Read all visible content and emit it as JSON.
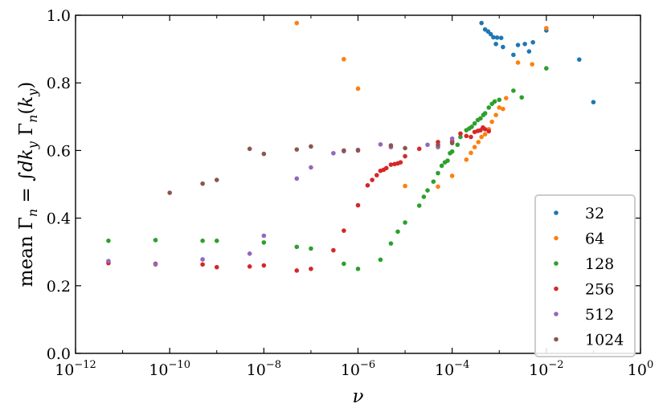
{
  "chart_data": {
    "type": "scatter",
    "title": "",
    "xlabel": "ν",
    "ylabel": "mean Γn = ∫dky Γn(ky)",
    "xscale": "log",
    "xlim": [
      1e-12,
      1
    ],
    "ylim": [
      0.0,
      1.0
    ],
    "x_tick_labels": [
      {
        "value": 1e-12,
        "base": "10",
        "exp": "−12"
      },
      {
        "value": 1e-10,
        "base": "10",
        "exp": "−10"
      },
      {
        "value": 1e-08,
        "base": "10",
        "exp": "−8"
      },
      {
        "value": 1e-06,
        "base": "10",
        "exp": "−6"
      },
      {
        "value": 0.0001,
        "base": "10",
        "exp": "−4"
      },
      {
        "value": 0.01,
        "base": "10",
        "exp": "−2"
      },
      {
        "value": 1,
        "base": "10",
        "exp": "0"
      }
    ],
    "y_ticks": [
      0.0,
      0.2,
      0.4,
      0.6,
      0.8,
      1.0
    ],
    "y_tick_labels": [
      "0.0",
      "0.2",
      "0.4",
      "0.6",
      "0.8",
      "1.0"
    ],
    "grid": false,
    "legend_position": "bottom-right",
    "series": [
      {
        "name": "32",
        "color": "#1f77b4",
        "points": [
          [
            0.00042,
            0.977
          ],
          [
            0.0005,
            0.958
          ],
          [
            0.00058,
            0.952
          ],
          [
            0.00066,
            0.944
          ],
          [
            0.00075,
            0.935
          ],
          [
            0.0009,
            0.934
          ],
          [
            0.0011,
            0.933
          ],
          [
            0.00085,
            0.915
          ],
          [
            0.0012,
            0.906
          ],
          [
            0.0025,
            0.912
          ],
          [
            0.0035,
            0.915
          ],
          [
            0.0052,
            0.92
          ],
          [
            0.0043,
            0.893
          ],
          [
            0.002,
            0.883
          ],
          [
            0.01,
            0.955
          ],
          [
            0.05,
            0.869
          ],
          [
            0.1,
            0.743
          ]
        ]
      },
      {
        "name": "64",
        "color": "#ff7f0e",
        "points": [
          [
            5e-08,
            0.977
          ],
          [
            5e-07,
            0.87
          ],
          [
            1e-06,
            0.783
          ],
          [
            1e-05,
            0.495
          ],
          [
            5e-05,
            0.493
          ],
          [
            0.0001,
            0.525
          ],
          [
            0.0002,
            0.573
          ],
          [
            0.00025,
            0.593
          ],
          [
            0.0003,
            0.61
          ],
          [
            0.00036,
            0.625
          ],
          [
            0.00042,
            0.64
          ],
          [
            0.0005,
            0.648
          ],
          [
            0.0006,
            0.663
          ],
          [
            0.0007,
            0.685
          ],
          [
            0.00085,
            0.705
          ],
          [
            0.001,
            0.727
          ],
          [
            0.0012,
            0.723
          ],
          [
            0.0014,
            0.755
          ],
          [
            0.0025,
            0.86
          ],
          [
            0.005,
            0.855
          ],
          [
            0.01,
            0.962
          ]
        ]
      },
      {
        "name": "128",
        "color": "#2ca02c",
        "points": [
          [
            5e-12,
            0.333
          ],
          [
            5e-11,
            0.335
          ],
          [
            5e-10,
            0.333
          ],
          [
            1e-09,
            0.333
          ],
          [
            1e-08,
            0.328
          ],
          [
            5e-08,
            0.315
          ],
          [
            1e-07,
            0.31
          ],
          [
            5e-07,
            0.265
          ],
          [
            1e-06,
            0.25
          ],
          [
            3e-06,
            0.277
          ],
          [
            5e-06,
            0.325
          ],
          [
            7e-06,
            0.36
          ],
          [
            1e-05,
            0.387
          ],
          [
            2e-05,
            0.437
          ],
          [
            2.5e-05,
            0.463
          ],
          [
            3e-05,
            0.482
          ],
          [
            4e-05,
            0.508
          ],
          [
            5e-05,
            0.533
          ],
          [
            6e-05,
            0.555
          ],
          [
            7e-05,
            0.565
          ],
          [
            8e-05,
            0.57
          ],
          [
            9e-05,
            0.592
          ],
          [
            0.0001,
            0.597
          ],
          [
            0.00013,
            0.617
          ],
          [
            0.00015,
            0.64
          ],
          [
            0.0002,
            0.66
          ],
          [
            0.00023,
            0.665
          ],
          [
            0.00026,
            0.67
          ],
          [
            0.0003,
            0.68
          ],
          [
            0.00035,
            0.69
          ],
          [
            0.0004,
            0.695
          ],
          [
            0.00046,
            0.705
          ],
          [
            0.0005,
            0.71
          ],
          [
            0.0006,
            0.727
          ],
          [
            0.0007,
            0.738
          ],
          [
            0.0008,
            0.745
          ],
          [
            0.001,
            0.75
          ],
          [
            0.002,
            0.777
          ],
          [
            0.003,
            0.757
          ],
          [
            0.01,
            0.843
          ]
        ]
      },
      {
        "name": "256",
        "color": "#d62728",
        "points": [
          [
            5e-12,
            0.267
          ],
          [
            5e-11,
            0.265
          ],
          [
            5e-10,
            0.263
          ],
          [
            1e-09,
            0.255
          ],
          [
            5e-09,
            0.257
          ],
          [
            1e-08,
            0.26
          ],
          [
            5e-08,
            0.245
          ],
          [
            1e-07,
            0.25
          ],
          [
            3e-07,
            0.305
          ],
          [
            5e-07,
            0.363
          ],
          [
            1e-06,
            0.438
          ],
          [
            1.6e-06,
            0.497
          ],
          [
            2e-06,
            0.513
          ],
          [
            2.5e-06,
            0.527
          ],
          [
            3e-06,
            0.54
          ],
          [
            3.5e-06,
            0.543
          ],
          [
            4e-06,
            0.548
          ],
          [
            5e-06,
            0.558
          ],
          [
            6e-06,
            0.56
          ],
          [
            7e-06,
            0.562
          ],
          [
            8e-06,
            0.565
          ],
          [
            1e-05,
            0.583
          ],
          [
            2e-05,
            0.605
          ],
          [
            5e-05,
            0.625
          ],
          [
            0.0001,
            0.627
          ],
          [
            0.00015,
            0.65
          ],
          [
            0.0002,
            0.643
          ],
          [
            0.00025,
            0.64
          ],
          [
            0.0003,
            0.655
          ],
          [
            0.00035,
            0.658
          ],
          [
            0.0004,
            0.66
          ],
          [
            0.00045,
            0.668
          ],
          [
            0.0005,
            0.663
          ],
          [
            0.0006,
            0.657
          ]
        ]
      },
      {
        "name": "512",
        "color": "#9467bd",
        "points": [
          [
            5e-12,
            0.273
          ],
          [
            5e-11,
            0.263
          ],
          [
            5e-10,
            0.278
          ],
          [
            5e-09,
            0.295
          ],
          [
            1e-08,
            0.348
          ],
          [
            5e-08,
            0.517
          ],
          [
            1e-07,
            0.55
          ],
          [
            3e-07,
            0.592
          ],
          [
            5e-07,
            0.598
          ],
          [
            1e-06,
            0.602
          ],
          [
            3e-06,
            0.618
          ],
          [
            5e-06,
            0.61
          ],
          [
            3e-05,
            0.617
          ],
          [
            5e-05,
            0.61
          ],
          [
            0.0001,
            0.635
          ]
        ]
      },
      {
        "name": "1024",
        "color": "#8c564b",
        "points": [
          [
            1e-10,
            0.475
          ],
          [
            5e-10,
            0.502
          ],
          [
            1e-09,
            0.513
          ],
          [
            5e-09,
            0.605
          ],
          [
            1e-08,
            0.59
          ],
          [
            5e-08,
            0.603
          ],
          [
            1e-07,
            0.612
          ],
          [
            5e-07,
            0.6
          ],
          [
            1e-06,
            0.6
          ],
          [
            5e-06,
            0.615
          ],
          [
            1e-05,
            0.607
          ],
          [
            5e-05,
            0.617
          ],
          [
            0.0001,
            0.622
          ]
        ]
      }
    ]
  }
}
